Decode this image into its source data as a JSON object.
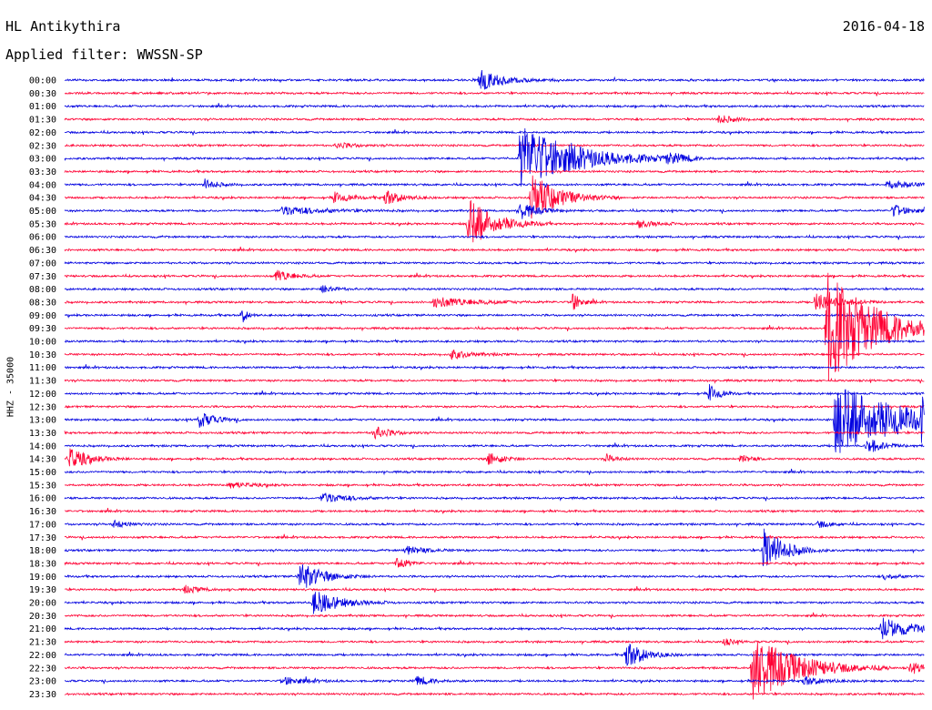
{
  "header": {
    "station": "HL Antikythira",
    "date": "2016-04-18",
    "filter_label": "Applied filter: WWSSN-SP",
    "channel_label": "HHZ - 35000"
  },
  "colors": {
    "trace_a": "#0000e0",
    "trace_b": "#ff0033"
  },
  "chart_data": {
    "type": "line",
    "title": "HL Antikythira",
    "subtitle": "Applied filter: WWSSN-SP",
    "ylabel": "HHZ - 35000",
    "xlabel": "",
    "grid": false,
    "legend": "none",
    "x_range": [
      0,
      30
    ],
    "row_labels": [
      "00:00",
      "00:30",
      "01:00",
      "01:30",
      "02:00",
      "02:30",
      "03:00",
      "03:30",
      "04:00",
      "04:30",
      "05:00",
      "05:30",
      "06:00",
      "06:30",
      "07:00",
      "07:30",
      "08:00",
      "08:30",
      "09:00",
      "09:30",
      "10:00",
      "10:30",
      "11:00",
      "11:30",
      "12:00",
      "12:30",
      "13:00",
      "13:30",
      "14:00",
      "14:30",
      "15:00",
      "15:30",
      "16:00",
      "16:30",
      "17:00",
      "17:30",
      "18:00",
      "18:30",
      "19:00",
      "19:30",
      "20:00",
      "20:30",
      "21:00",
      "21:30",
      "22:00",
      "22:30",
      "23:00",
      "23:30"
    ],
    "row_colors": [
      "blue",
      "red"
    ],
    "events": [
      {
        "row": 0,
        "t": 14.5,
        "amp": 12,
        "dur": 1.2
      },
      {
        "row": 3,
        "t": 22.8,
        "amp": 5,
        "dur": 0.8
      },
      {
        "row": 5,
        "t": 9.5,
        "amp": 3,
        "dur": 1.0
      },
      {
        "row": 6,
        "t": 15.9,
        "amp": 38,
        "dur": 2.8
      },
      {
        "row": 6,
        "t": 21.0,
        "amp": 5,
        "dur": 1.0
      },
      {
        "row": 8,
        "t": 4.9,
        "amp": 6,
        "dur": 0.6
      },
      {
        "row": 8,
        "t": 28.7,
        "amp": 5,
        "dur": 1.2
      },
      {
        "row": 9,
        "t": 9.4,
        "amp": 6,
        "dur": 0.8
      },
      {
        "row": 9,
        "t": 11.2,
        "amp": 9,
        "dur": 0.8
      },
      {
        "row": 9,
        "t": 16.3,
        "amp": 26,
        "dur": 1.4
      },
      {
        "row": 10,
        "t": 7.6,
        "amp": 5,
        "dur": 2.0
      },
      {
        "row": 10,
        "t": 15.9,
        "amp": 10,
        "dur": 0.8
      },
      {
        "row": 10,
        "t": 28.9,
        "amp": 7,
        "dur": 0.8
      },
      {
        "row": 11,
        "t": 14.1,
        "amp": 28,
        "dur": 1.3
      },
      {
        "row": 11,
        "t": 20.0,
        "amp": 4,
        "dur": 1.0
      },
      {
        "row": 15,
        "t": 7.4,
        "amp": 7,
        "dur": 0.8
      },
      {
        "row": 16,
        "t": 9.0,
        "amp": 5,
        "dur": 0.6
      },
      {
        "row": 17,
        "t": 12.9,
        "amp": 6,
        "dur": 2.0
      },
      {
        "row": 17,
        "t": 17.7,
        "amp": 12,
        "dur": 0.4
      },
      {
        "row": 17,
        "t": 26.2,
        "amp": 10,
        "dur": 1.2
      },
      {
        "row": 18,
        "t": 6.2,
        "amp": 8,
        "dur": 0.3
      },
      {
        "row": 19,
        "t": 26.6,
        "amp": 62,
        "dur": 2.6
      },
      {
        "row": 21,
        "t": 13.5,
        "amp": 5,
        "dur": 1.0
      },
      {
        "row": 24,
        "t": 22.5,
        "amp": 10,
        "dur": 0.5
      },
      {
        "row": 26,
        "t": 4.7,
        "amp": 9,
        "dur": 0.8
      },
      {
        "row": 26,
        "t": 26.9,
        "amp": 40,
        "dur": 3.5
      },
      {
        "row": 26,
        "t": 29.9,
        "amp": 26,
        "dur": 0.6
      },
      {
        "row": 27,
        "t": 10.8,
        "amp": 7,
        "dur": 0.8
      },
      {
        "row": 28,
        "t": 28.0,
        "amp": 9,
        "dur": 0.8
      },
      {
        "row": 29,
        "t": 0.15,
        "amp": 12,
        "dur": 1.0
      },
      {
        "row": 29,
        "t": 14.8,
        "amp": 8,
        "dur": 0.7
      },
      {
        "row": 29,
        "t": 18.9,
        "amp": 5,
        "dur": 0.5
      },
      {
        "row": 29,
        "t": 23.6,
        "amp": 5,
        "dur": 0.5
      },
      {
        "row": 31,
        "t": 5.7,
        "amp": 4,
        "dur": 1.0
      },
      {
        "row": 32,
        "t": 9.0,
        "amp": 6,
        "dur": 1.2
      },
      {
        "row": 34,
        "t": 1.7,
        "amp": 4,
        "dur": 0.8
      },
      {
        "row": 34,
        "t": 26.3,
        "amp": 4,
        "dur": 0.6
      },
      {
        "row": 36,
        "t": 11.9,
        "amp": 5,
        "dur": 1.0
      },
      {
        "row": 36,
        "t": 24.4,
        "amp": 28,
        "dur": 1.0
      },
      {
        "row": 37,
        "t": 11.6,
        "amp": 9,
        "dur": 0.5
      },
      {
        "row": 38,
        "t": 8.2,
        "amp": 16,
        "dur": 1.2
      },
      {
        "row": 38,
        "t": 28.6,
        "amp": 3,
        "dur": 0.8
      },
      {
        "row": 39,
        "t": 4.2,
        "amp": 4,
        "dur": 0.8
      },
      {
        "row": 40,
        "t": 8.7,
        "amp": 14,
        "dur": 1.3
      },
      {
        "row": 42,
        "t": 28.5,
        "amp": 12,
        "dur": 1.6
      },
      {
        "row": 43,
        "t": 23.0,
        "amp": 4,
        "dur": 0.5
      },
      {
        "row": 44,
        "t": 19.6,
        "amp": 16,
        "dur": 0.9
      },
      {
        "row": 45,
        "t": 24.0,
        "amp": 40,
        "dur": 2.2
      },
      {
        "row": 45,
        "t": 29.5,
        "amp": 5,
        "dur": 1.4
      },
      {
        "row": 46,
        "t": 7.6,
        "amp": 5,
        "dur": 1.0
      },
      {
        "row": 46,
        "t": 12.3,
        "amp": 5,
        "dur": 0.8
      },
      {
        "row": 46,
        "t": 25.8,
        "amp": 5,
        "dur": 1.0
      }
    ]
  }
}
